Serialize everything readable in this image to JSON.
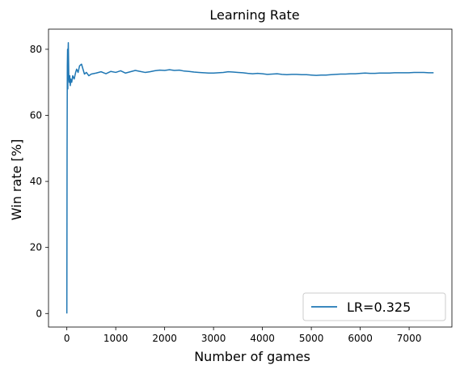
{
  "chart_data": {
    "type": "line",
    "title": "Learning Rate",
    "xlabel": "Number of games",
    "ylabel": "Win rate [%]",
    "xlim": [
      -375,
      7875
    ],
    "ylim": [
      -4.1,
      86.1
    ],
    "xticks": [
      0,
      1000,
      2000,
      3000,
      4000,
      5000,
      6000,
      7000
    ],
    "yticks": [
      0,
      20,
      40,
      60,
      80
    ],
    "grid": false,
    "legend_position": "bottom-right",
    "series": [
      {
        "name": "LR=0.325",
        "color": "#1f77b4",
        "points": [
          [
            0,
            0
          ],
          [
            5,
            50
          ],
          [
            10,
            75
          ],
          [
            15,
            80
          ],
          [
            20,
            68
          ],
          [
            25,
            79
          ],
          [
            30,
            82
          ],
          [
            35,
            77
          ],
          [
            40,
            72
          ],
          [
            50,
            70
          ],
          [
            60,
            72
          ],
          [
            70,
            69
          ],
          [
            80,
            71
          ],
          [
            100,
            70
          ],
          [
            120,
            72
          ],
          [
            150,
            71
          ],
          [
            180,
            73
          ],
          [
            200,
            74
          ],
          [
            230,
            73
          ],
          [
            260,
            75
          ],
          [
            300,
            75.5
          ],
          [
            330,
            74
          ],
          [
            360,
            72.5
          ],
          [
            400,
            73
          ],
          [
            450,
            72
          ],
          [
            500,
            72.5
          ],
          [
            600,
            72.8
          ],
          [
            700,
            73.2
          ],
          [
            800,
            72.6
          ],
          [
            900,
            73.3
          ],
          [
            1000,
            73
          ],
          [
            1100,
            73.5
          ],
          [
            1200,
            72.8
          ],
          [
            1300,
            73.2
          ],
          [
            1400,
            73.6
          ],
          [
            1500,
            73.3
          ],
          [
            1600,
            73.0
          ],
          [
            1700,
            73.2
          ],
          [
            1800,
            73.5
          ],
          [
            1900,
            73.7
          ],
          [
            2000,
            73.6
          ],
          [
            2100,
            73.8
          ],
          [
            2200,
            73.6
          ],
          [
            2300,
            73.7
          ],
          [
            2400,
            73.4
          ],
          [
            2500,
            73.3
          ],
          [
            2600,
            73.1
          ],
          [
            2700,
            73.0
          ],
          [
            2800,
            72.9
          ],
          [
            2900,
            72.8
          ],
          [
            3000,
            72.8
          ],
          [
            3100,
            72.9
          ],
          [
            3200,
            73.0
          ],
          [
            3300,
            73.2
          ],
          [
            3400,
            73.1
          ],
          [
            3500,
            73.0
          ],
          [
            3600,
            72.9
          ],
          [
            3700,
            72.7
          ],
          [
            3800,
            72.6
          ],
          [
            3900,
            72.7
          ],
          [
            4000,
            72.6
          ],
          [
            4100,
            72.4
          ],
          [
            4200,
            72.5
          ],
          [
            4300,
            72.6
          ],
          [
            4400,
            72.4
          ],
          [
            4500,
            72.3
          ],
          [
            4600,
            72.4
          ],
          [
            4700,
            72.4
          ],
          [
            4800,
            72.3
          ],
          [
            4900,
            72.3
          ],
          [
            5000,
            72.2
          ],
          [
            5100,
            72.1
          ],
          [
            5200,
            72.2
          ],
          [
            5300,
            72.2
          ],
          [
            5400,
            72.3
          ],
          [
            5500,
            72.4
          ],
          [
            5600,
            72.5
          ],
          [
            5700,
            72.5
          ],
          [
            5800,
            72.6
          ],
          [
            5900,
            72.6
          ],
          [
            6000,
            72.7
          ],
          [
            6100,
            72.8
          ],
          [
            6200,
            72.7
          ],
          [
            6300,
            72.7
          ],
          [
            6400,
            72.8
          ],
          [
            6500,
            72.8
          ],
          [
            6600,
            72.8
          ],
          [
            6700,
            72.9
          ],
          [
            6800,
            72.9
          ],
          [
            6900,
            72.9
          ],
          [
            7000,
            72.9
          ],
          [
            7100,
            73.0
          ],
          [
            7200,
            73.0
          ],
          [
            7300,
            73.0
          ],
          [
            7400,
            72.9
          ],
          [
            7500,
            72.9
          ]
        ]
      }
    ]
  }
}
